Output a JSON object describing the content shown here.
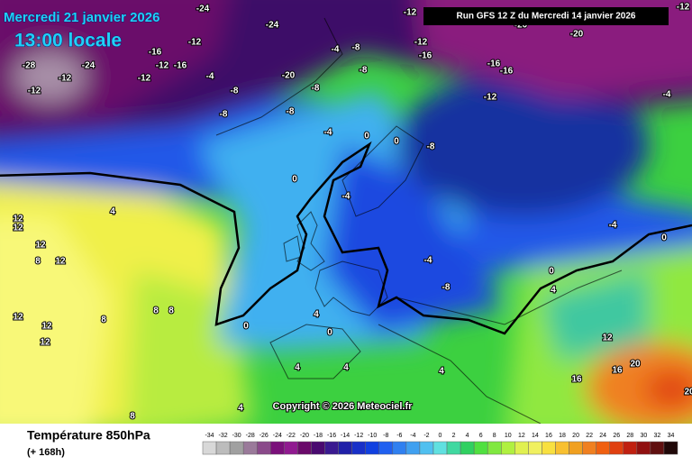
{
  "header": {
    "date": "Mercredi 21 janvier 2026",
    "time": "13:00 locale",
    "run": "Run GFS 12 Z du Mercredi 14 janvier 2026"
  },
  "copyright": "Copyright © 2026 Meteociel.fr",
  "footer": {
    "title": "Température 850hPa",
    "subtitle": "(+ 168h)"
  },
  "scale": {
    "values": [
      -34,
      -32,
      -30,
      -28,
      -26,
      -24,
      -22,
      -20,
      -18,
      -16,
      -14,
      -12,
      -10,
      -8,
      -6,
      -4,
      -2,
      0,
      2,
      4,
      6,
      8,
      10,
      12,
      14,
      16,
      18,
      20,
      22,
      24,
      26,
      28,
      30,
      32,
      34
    ],
    "colors": [
      "#d8d8d8",
      "#bcbcbc",
      "#a0a0a0",
      "#9a7a9a",
      "#8a4a8a",
      "#7a107a",
      "#901a90",
      "#6a0a6a",
      "#4a0a70",
      "#3a1a90",
      "#2020a8",
      "#1830c8",
      "#1040e0",
      "#2060f0",
      "#3080f0",
      "#40a0f0",
      "#50c0f0",
      "#60e0e0",
      "#40d8a0",
      "#30d060",
      "#50e040",
      "#80e840",
      "#b0f040",
      "#e0f050",
      "#f0f060",
      "#f8e040",
      "#f8c030",
      "#f0a020",
      "#f08020",
      "#f06010",
      "#e04010",
      "#c02010",
      "#901010",
      "#601010",
      "#200808"
    ]
  },
  "map_labels": [
    "-24",
    "-24",
    "-12",
    "-16",
    "-12",
    "-16",
    "-12",
    "-28",
    "-24",
    "-12",
    "-12",
    "-4",
    "-20",
    "-8",
    "-8",
    "-4",
    "-8",
    "-8",
    "-12",
    "-12",
    "-16",
    "-16",
    "-16",
    "-12",
    "-20",
    "-20",
    "-12",
    "-4",
    "-8",
    "-8",
    "-4",
    "0",
    "0",
    "-8",
    "0",
    "-4",
    "4",
    "12",
    "12",
    "12",
    "8",
    "12",
    "12",
    "12",
    "12",
    "8",
    "8",
    "8",
    "0",
    "4",
    "0",
    "4",
    "4",
    "4",
    "4",
    "8",
    "16",
    "20",
    "20",
    "16",
    "12",
    "-4",
    "0",
    "4",
    "0",
    "-8",
    "-4"
  ]
}
